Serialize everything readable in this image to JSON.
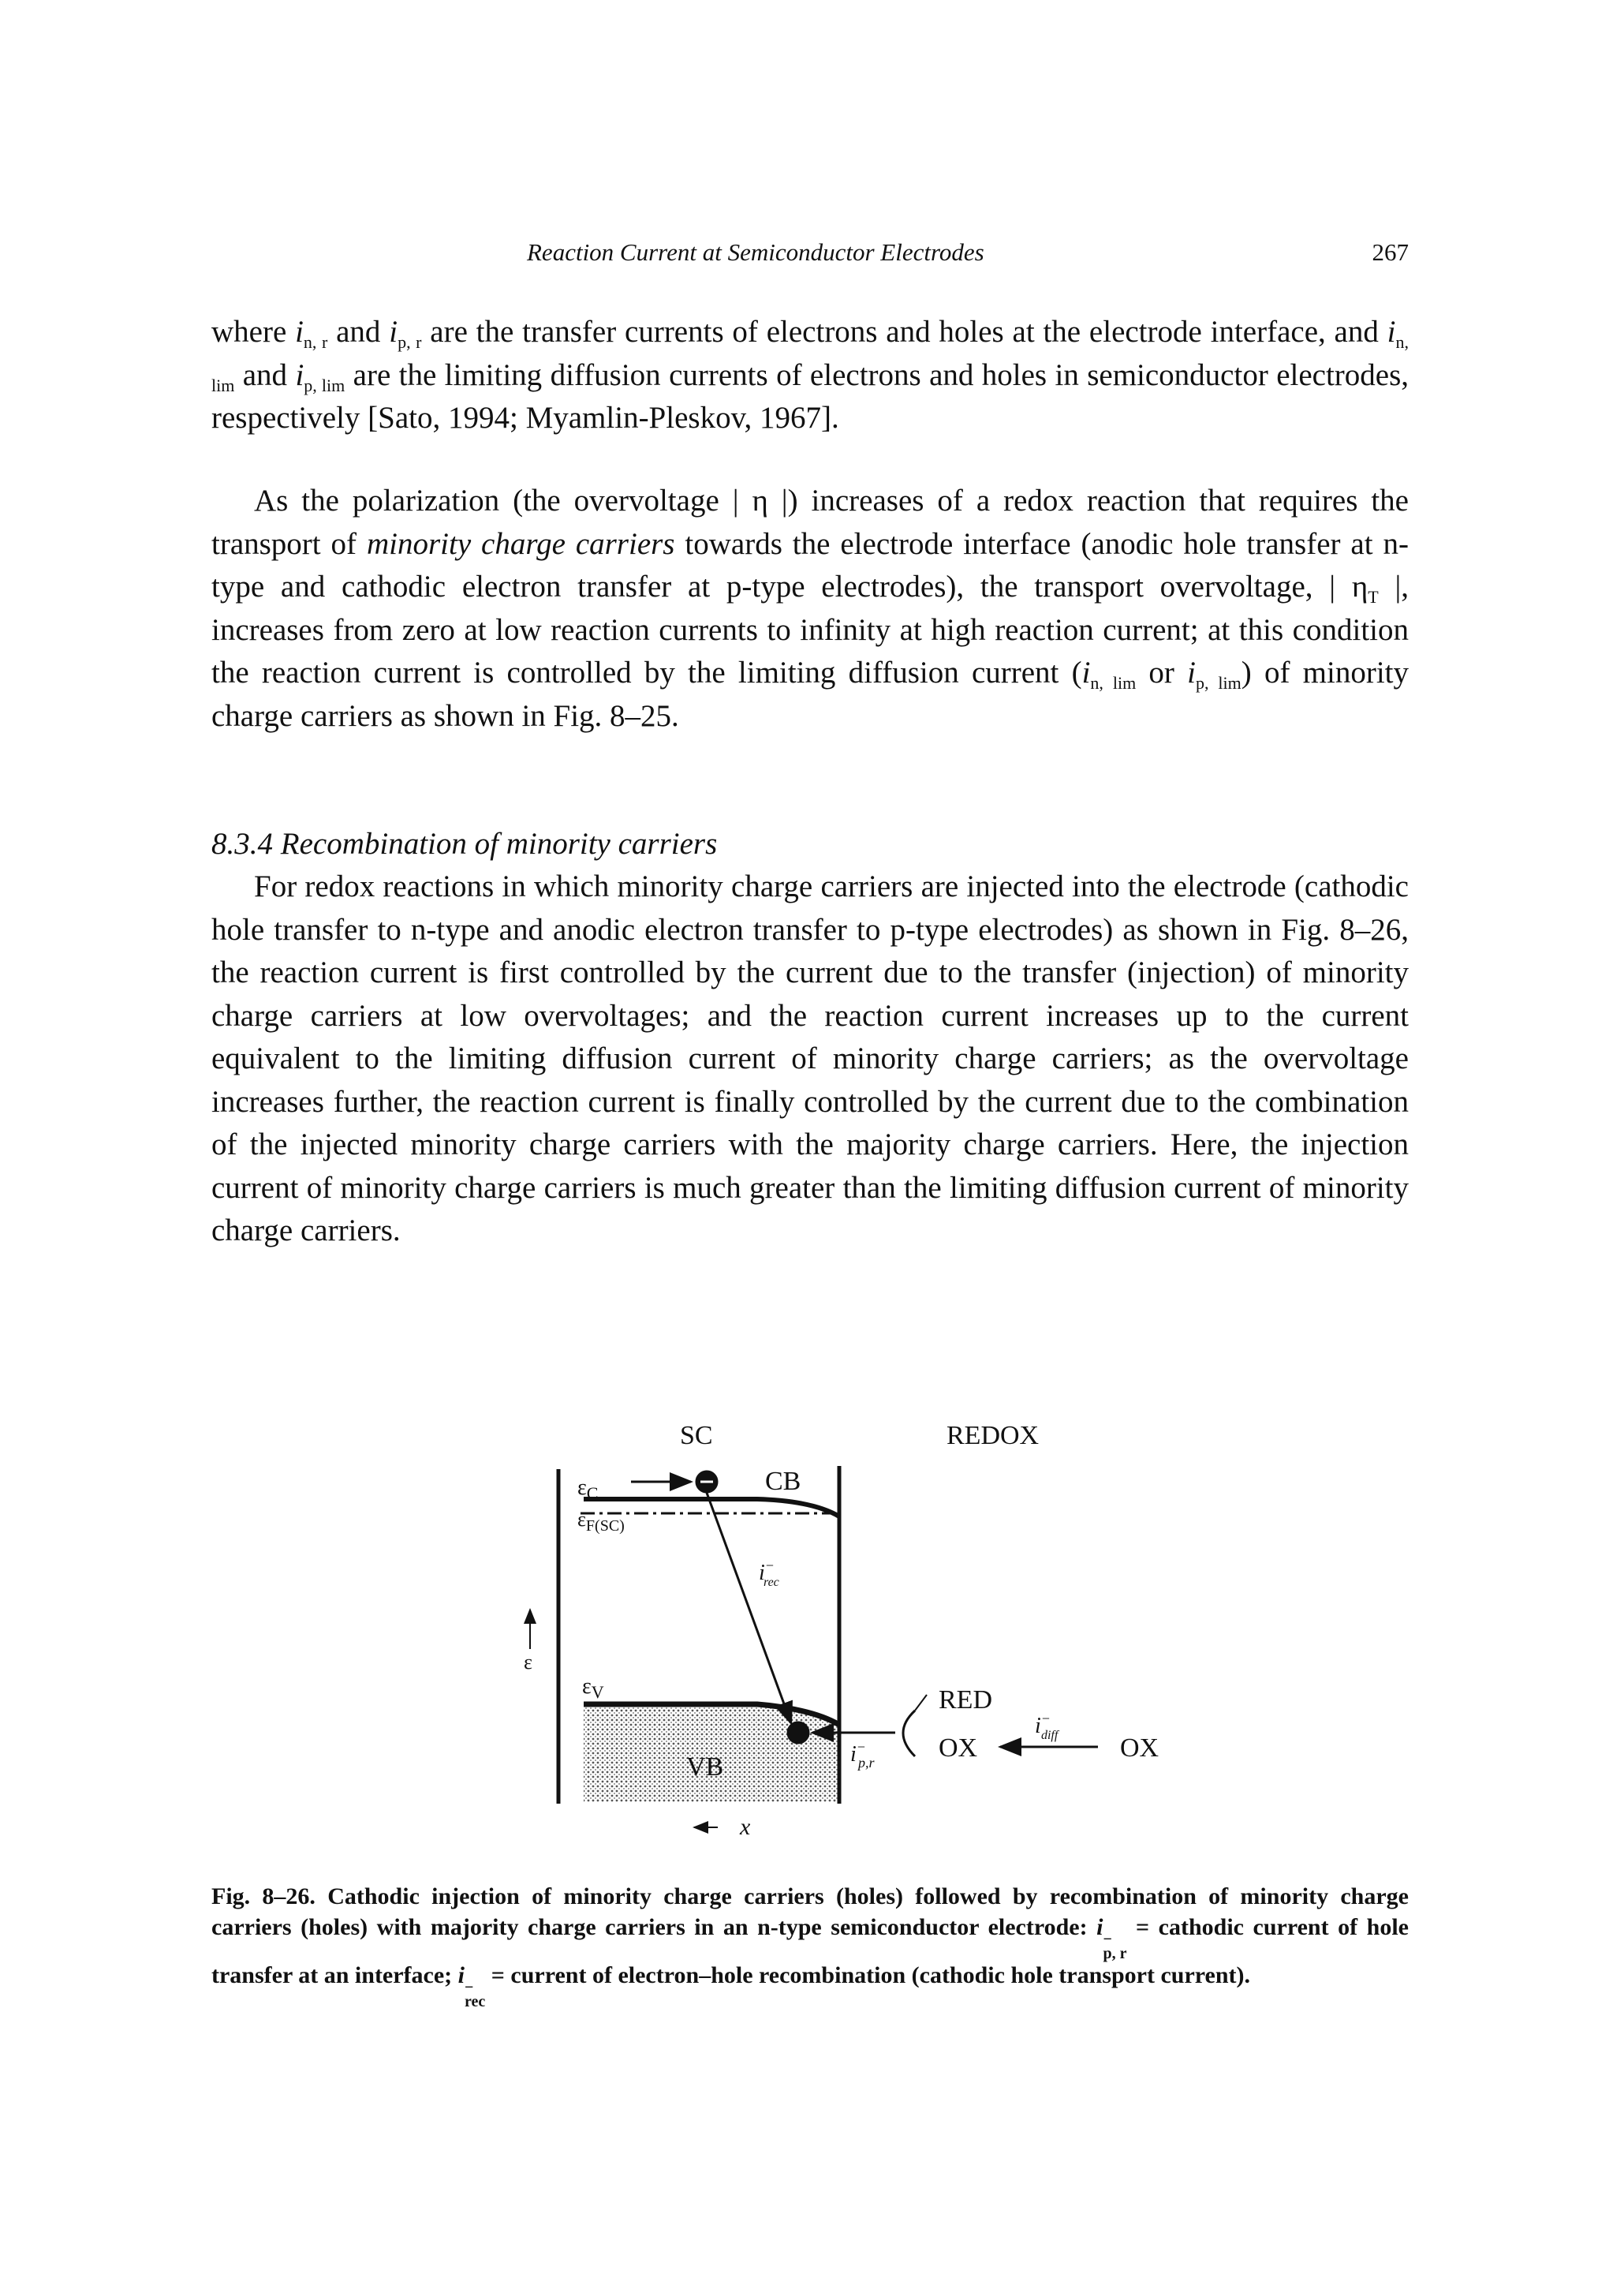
{
  "header": {
    "title": "Reaction Current at Semiconductor Electrodes",
    "page": "267"
  },
  "paragraphs": [
    [
      "where ",
      "i",
      "n, r",
      " and ",
      "i",
      "p, r",
      " are the transfer currents of electrons and holes at the electrode interface, and ",
      "i",
      "n, lim",
      " and ",
      "i",
      "p, lim",
      " are the limiting diffusion currents of electrons and holes in semiconductor electrodes, respectively [Sato, 1994; Myamlin-Pleskov, 1967]."
    ],
    [
      "As the polarization (the overvoltage | η |) increases of a redox reaction that requires the transport of ",
      "minority charge carriers",
      " towards the electrode interface (anodic hole transfer at n-type and cathodic electron transfer at p-type electrodes), the transport overvoltage, | η",
      "T",
      " |, increases from zero at low reaction currents to infinity at high reaction current; at this condition the reaction current is controlled by the limiting diffusion current (",
      "i",
      "n, lim",
      " or ",
      "i",
      "p, lim",
      ") of minority charge carriers as shown in Fig. 8–25."
    ],
    [
      "For redox reactions in which minority charge carriers are injected into the electrode (cathodic hole transfer to n-type and anodic electron transfer to p-type electrodes) as shown in Fig. 8–26, the reaction current is first controlled by the current due to the transfer (injection) of minority charge carriers at low overvoltages; and the reaction current increases up to the current equivalent to the limiting diffusion current of minority charge carriers; as the overvoltage increases further, the reaction current is finally controlled by the current due to the combination of the injected minority charge carriers with the majority charge carriers. Here, the injection current of minority charge carriers is much greater than the limiting diffusion current of minority charge carriers."
    ]
  ],
  "section": {
    "heading": "8.3.4 Recombination of minority carriers"
  },
  "figure": {
    "sc": "SC",
    "redox": "REDOX",
    "cb": "CB",
    "vb": "VB",
    "ec": [
      "ε",
      "C"
    ],
    "ef": [
      "ε",
      "F(SC)"
    ],
    "ev": [
      "ε",
      "V"
    ],
    "energy": "ε",
    "irec": [
      "i",
      "−",
      "rec"
    ],
    "ipr": [
      "i",
      "−",
      "p,r"
    ],
    "idiff": [
      "i",
      "−",
      "diff"
    ],
    "red": "RED",
    "ox1": "OX",
    "ox2": "OX",
    "x": "x"
  },
  "caption": [
    "Fig. 8–26.",
    " Cathodic injection of minority charge carriers (holes) followed by recombination of minority charge carriers (holes) with majority charge carriers in an n-type semiconductor electrode: ",
    "i",
    "−",
    "p, r",
    " = cathodic current of hole transfer at an interface; ",
    "i",
    "−",
    "rec",
    " = current of electron–hole recombination (cathodic hole transport current)."
  ]
}
